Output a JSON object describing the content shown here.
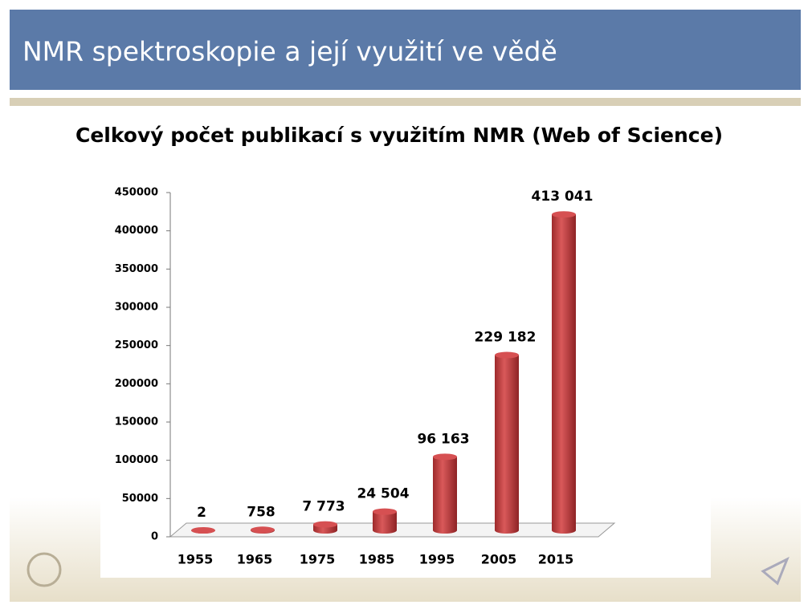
{
  "header": {
    "title": "NMR spektroskopie a její využití ve vědě"
  },
  "chart_data": {
    "type": "bar",
    "title": "Celkový počet publikací s využitím NMR (Web of Science)",
    "categories": [
      "1955",
      "1965",
      "1975",
      "1985",
      "1995",
      "2005",
      "2015"
    ],
    "values": [
      2,
      758,
      7773,
      24504,
      96163,
      229182,
      413041
    ],
    "value_labels": [
      "2",
      "758",
      "7 773",
      "24 504",
      "96 163",
      "229 182",
      "413 041"
    ],
    "color": "#c0393b",
    "ylim": [
      0,
      450000
    ],
    "yticks": [
      0,
      50000,
      100000,
      150000,
      200000,
      250000,
      300000,
      350000,
      400000,
      450000
    ]
  }
}
